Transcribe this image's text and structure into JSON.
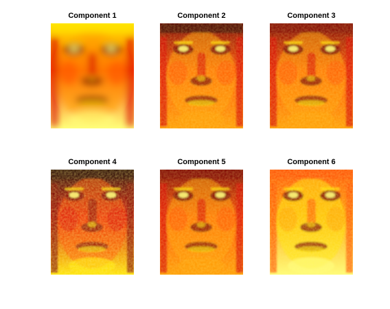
{
  "figure": {
    "panels": [
      {
        "title": "Component 1",
        "variant": "smooth"
      },
      {
        "title": "Component 2",
        "variant": "detailed"
      },
      {
        "title": "Component 3",
        "variant": "detailed"
      },
      {
        "title": "Component 4",
        "variant": "high-contrast"
      },
      {
        "title": "Component 5",
        "variant": "detailed"
      },
      {
        "title": "Component 6",
        "variant": "bright"
      }
    ],
    "colormap": [
      "#1a0000",
      "#7a0000",
      "#d40000",
      "#ff4b00",
      "#ff9a00",
      "#ffe600",
      "#ffff7a"
    ]
  }
}
